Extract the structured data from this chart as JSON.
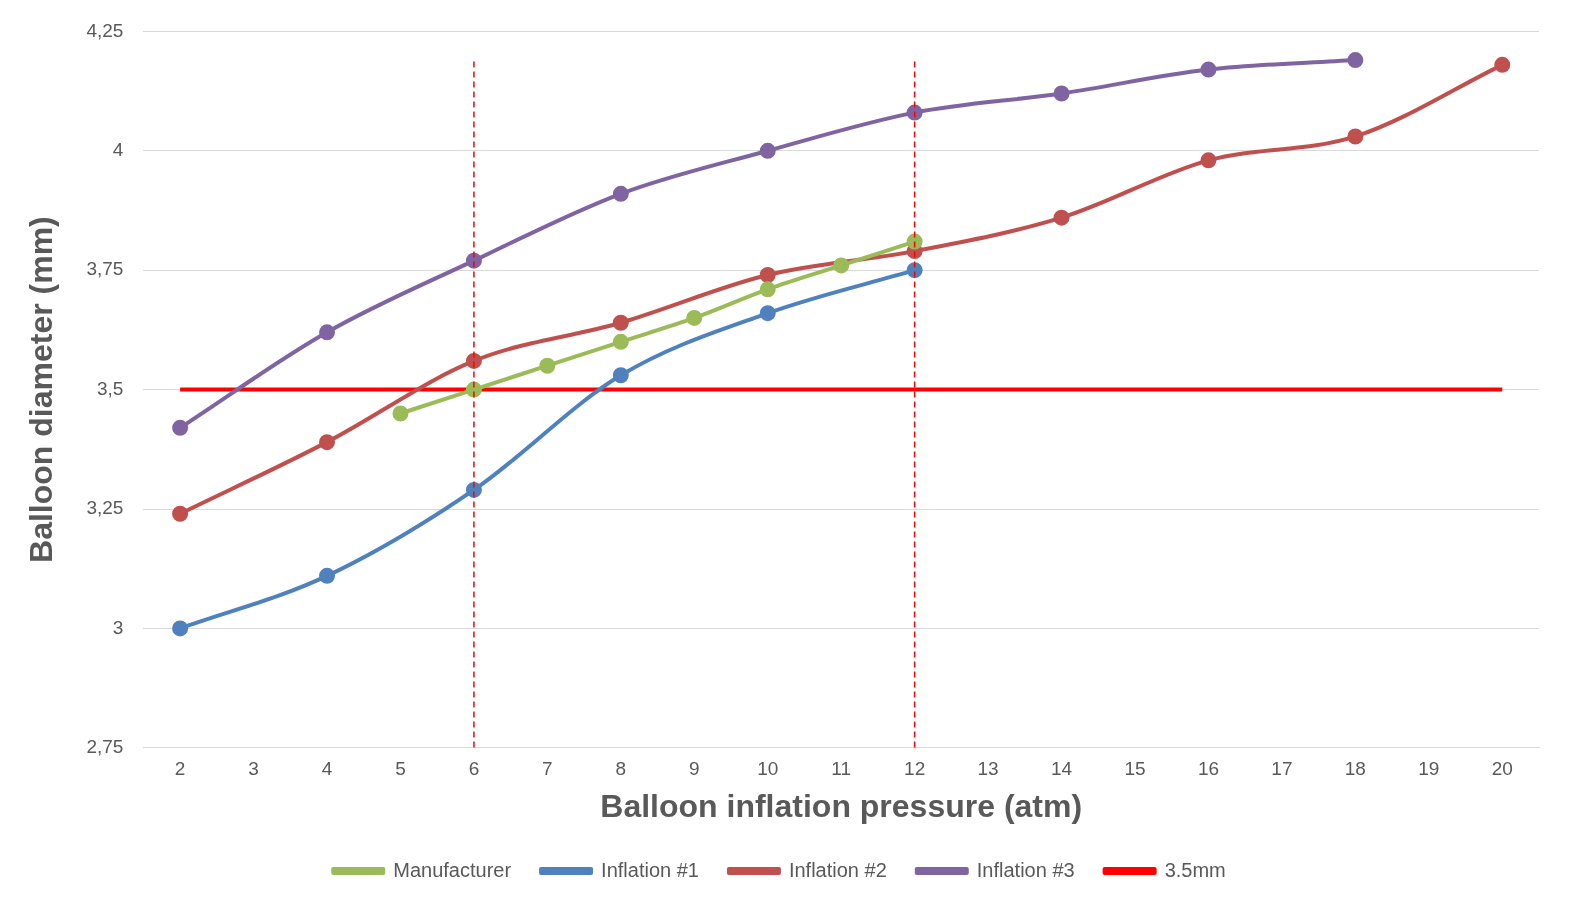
{
  "chart_data": {
    "type": "line",
    "xlabel": "Balloon inflation pressure (atm)",
    "ylabel": "Balloon diameter (mm)",
    "xlim": [
      1.5,
      20.5
    ],
    "xticks": [
      2,
      3,
      4,
      5,
      6,
      7,
      8,
      9,
      10,
      11,
      12,
      13,
      14,
      15,
      16,
      17,
      18,
      19,
      20
    ],
    "ylim": [
      2.75,
      4.25
    ],
    "yticks": [
      {
        "value": 2.75,
        "label": "2,75"
      },
      3,
      {
        "value": 3.25,
        "label": "3,25"
      },
      {
        "value": 3.5,
        "label": "3,5"
      },
      {
        "value": 3.75,
        "label": "3,75"
      },
      4,
      {
        "value": 4.25,
        "label": "4,25"
      }
    ],
    "grid": "y",
    "legend": "bottom",
    "marker": "circle",
    "line_style": "solid",
    "series": [
      {
        "name": "Manufacturer",
        "color": "#9bbb59",
        "x": [
          5,
          6,
          7,
          8,
          9,
          10,
          11,
          12
        ],
        "values": [
          3.45,
          3.5,
          3.55,
          3.6,
          3.65,
          3.71,
          3.76,
          3.81
        ]
      },
      {
        "name": "Inflation #1",
        "color": "#4f81bd",
        "x": [
          2,
          4,
          6,
          8,
          10,
          12
        ],
        "values": [
          3.0,
          3.11,
          3.29,
          3.53,
          3.66,
          3.75
        ]
      },
      {
        "name": "Inflation #2",
        "color": "#c0504d",
        "x": [
          2,
          4,
          6,
          8,
          10,
          12,
          14,
          16,
          18,
          20
        ],
        "values": [
          3.24,
          3.39,
          3.56,
          3.64,
          3.74,
          3.79,
          3.86,
          3.98,
          4.03,
          4.18
        ]
      },
      {
        "name": "Inflation #3",
        "color": "#8064a2",
        "x": [
          2,
          4,
          6,
          8,
          10,
          12,
          14,
          16,
          18
        ],
        "values": [
          3.42,
          3.62,
          3.77,
          3.91,
          4.0,
          4.08,
          4.12,
          4.17,
          4.19
        ]
      },
      {
        "name": "3.5mm",
        "color": "#ff0000",
        "x": [
          2,
          20
        ],
        "values": [
          3.5,
          3.5
        ],
        "marker": "none"
      }
    ],
    "ref_lines": [
      {
        "axis": "x",
        "value": 6,
        "color": "#ff0000",
        "line_style": "dashed"
      },
      {
        "axis": "x",
        "value": 12,
        "color": "#ff0000",
        "line_style": "dashed"
      }
    ]
  }
}
